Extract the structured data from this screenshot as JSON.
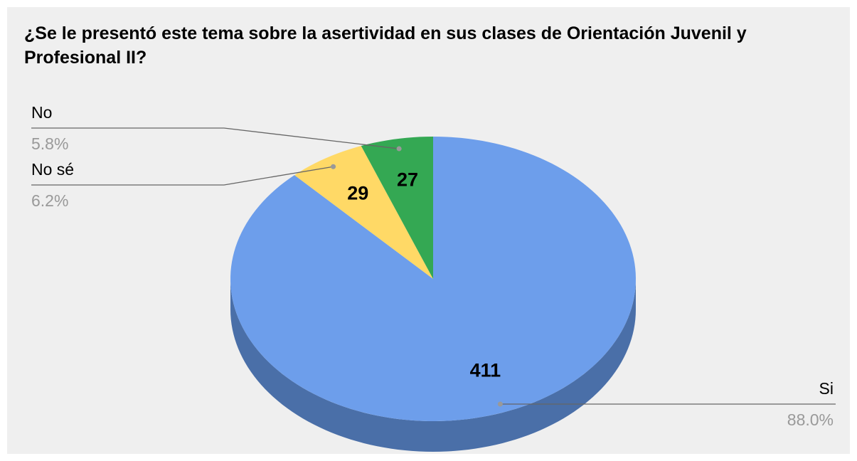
{
  "chart_data": {
    "type": "pie",
    "title": "¿Se le presentó este tema sobre la asertividad en sus clases de Orientación Juvenil y Profesional II?",
    "categories": [
      "Si",
      "No sé",
      "No"
    ],
    "values": [
      411,
      29,
      27
    ],
    "percent_labels": [
      "88.0%",
      "6.2%",
      "5.8%"
    ],
    "colors": [
      "#6d9eeb",
      "#ffd966",
      "#34a853"
    ],
    "side_colors": [
      "#4a6fa8",
      "#c9aa4f",
      "#27803f"
    ]
  }
}
